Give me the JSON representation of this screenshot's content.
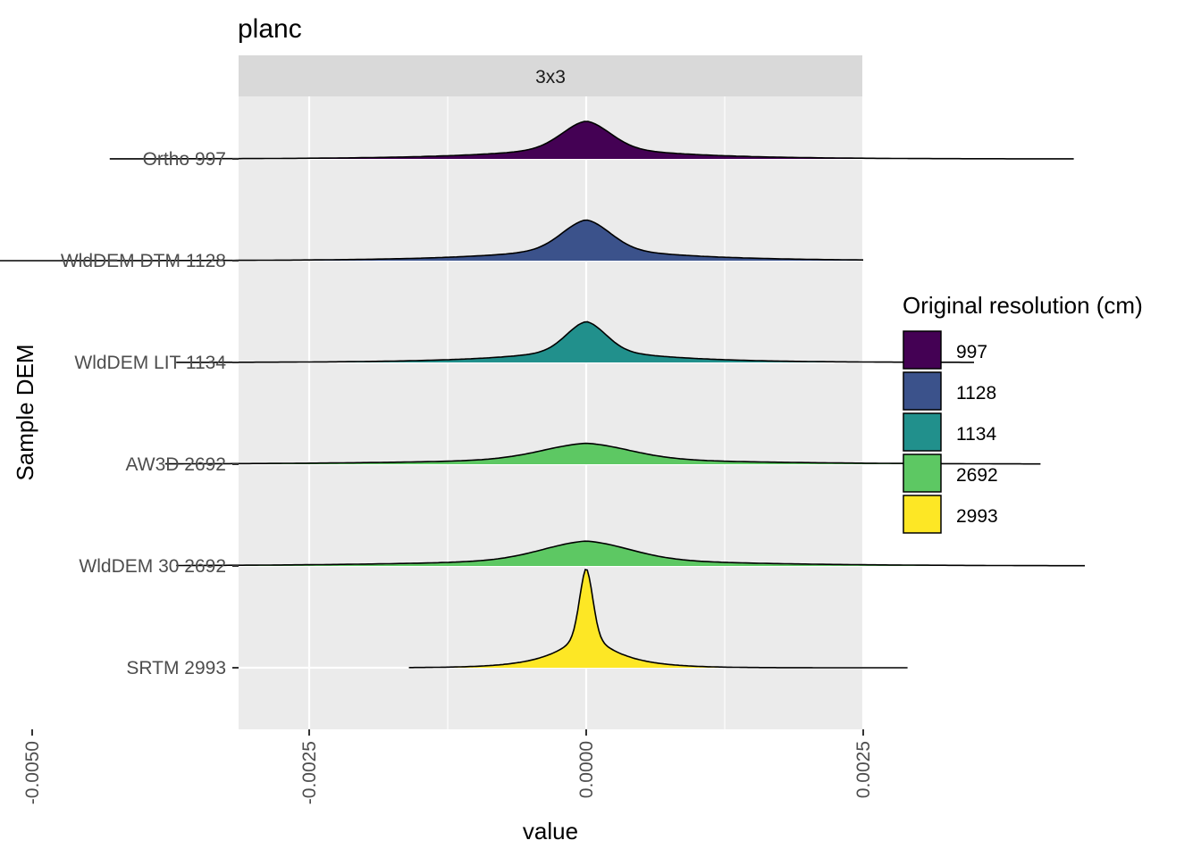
{
  "chart_data": {
    "type": "ridgeline",
    "title": "planc",
    "facet": "3x3",
    "xlabel": "value",
    "ylabel": "Sample DEM",
    "xlim": [
      -0.0063,
      0.005
    ],
    "x_ticks": [
      -0.005,
      -0.0025,
      0.0,
      0.0025
    ],
    "x_tick_labels": [
      "-0.0050",
      "-0.0025",
      "0.0000",
      "0.0025"
    ],
    "grid": true,
    "legend": {
      "title": "Original resolution (cm)",
      "position": "right",
      "entries": [
        {
          "label": "997",
          "color": "#440154"
        },
        {
          "label": "1128",
          "color": "#3B528B"
        },
        {
          "label": "1134",
          "color": "#21908C"
        },
        {
          "label": "2692",
          "color": "#5DC863"
        },
        {
          "label": "2993",
          "color": "#FDE725"
        }
      ]
    },
    "series": [
      {
        "name": "Ortho 997",
        "resolution": "997",
        "color": "#440154",
        "min": -0.0043,
        "max": 0.0044,
        "mode": 0.0,
        "peak_height": 0.38,
        "core_width": 0.00022,
        "tail_width": 0.0008
      },
      {
        "name": "WldDEM DTM 1128",
        "resolution": "1128",
        "color": "#3B528B",
        "min": -0.0058,
        "max": 0.0025,
        "mode": 0.0,
        "peak_height": 0.41,
        "core_width": 0.00022,
        "tail_width": 0.0008
      },
      {
        "name": "WldDEM LIT 1134",
        "resolution": "1134",
        "color": "#21908C",
        "min": -0.0037,
        "max": 0.0035,
        "mode": 0.0,
        "peak_height": 0.41,
        "core_width": 0.00018,
        "tail_width": 0.0007
      },
      {
        "name": "AW3D 2692",
        "resolution": "2692",
        "color": "#5DC863",
        "min": -0.0038,
        "max": 0.0041,
        "mode": 0.0,
        "peak_height": 0.21,
        "core_width": 0.0004,
        "tail_width": 0.0012
      },
      {
        "name": "WldDEM 30 2692",
        "resolution": "2692",
        "color": "#5DC863",
        "min": -0.0037,
        "max": 0.0045,
        "mode": 0.0,
        "peak_height": 0.25,
        "core_width": 0.0004,
        "tail_width": 0.0012
      },
      {
        "name": "SRTM 2993",
        "resolution": "2993",
        "color": "#FDE725",
        "min": -0.0016,
        "max": 0.0029,
        "mode": 0.0,
        "peak_height": 1.0,
        "core_width": 6e-05,
        "tail_width": 0.0003
      }
    ]
  }
}
